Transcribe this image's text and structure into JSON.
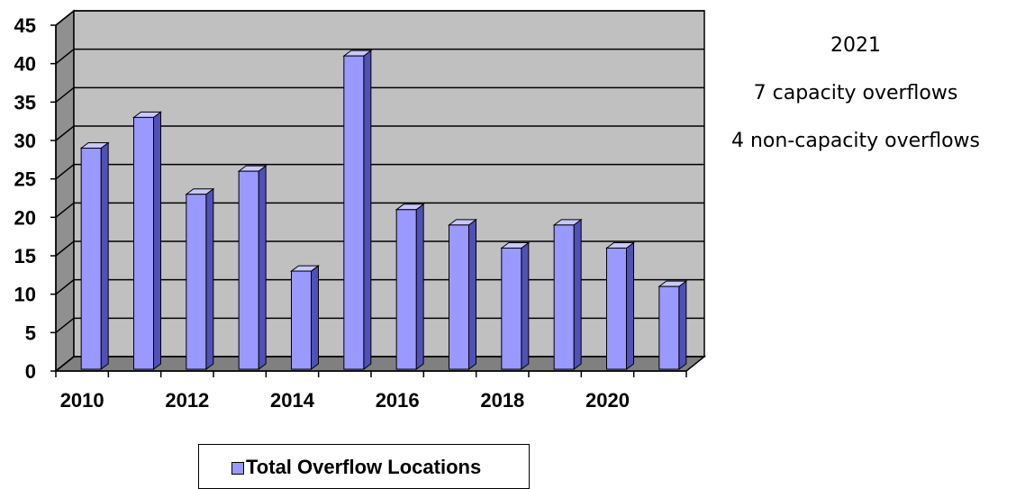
{
  "chart_data": {
    "type": "bar",
    "x": [
      2010,
      2011,
      2012,
      2013,
      2014,
      2015,
      2016,
      2017,
      2018,
      2019,
      2020,
      2021
    ],
    "x_tick_labels": [
      "2010",
      "2012",
      "2014",
      "2016",
      "2018",
      "2020"
    ],
    "series": [
      {
        "name": "Total Overflow Locations",
        "values": [
          29,
          33,
          23,
          26,
          13,
          41,
          21,
          19,
          16,
          19,
          16,
          11
        ],
        "color": "#9999ff"
      }
    ],
    "ylim": [
      0,
      45
    ],
    "y_ticks": [
      0,
      5,
      10,
      15,
      20,
      25,
      30,
      35,
      40,
      45
    ],
    "grid": true,
    "legend_placement": "bottom",
    "wall_color": "#c0c0c0",
    "floor_color": "#808080"
  },
  "annotations": {
    "year": "2021",
    "capacity": "7 capacity overflows",
    "non_capacity": "4 non-capacity overflows"
  },
  "legend": {
    "label": "Total Overflow Locations"
  }
}
